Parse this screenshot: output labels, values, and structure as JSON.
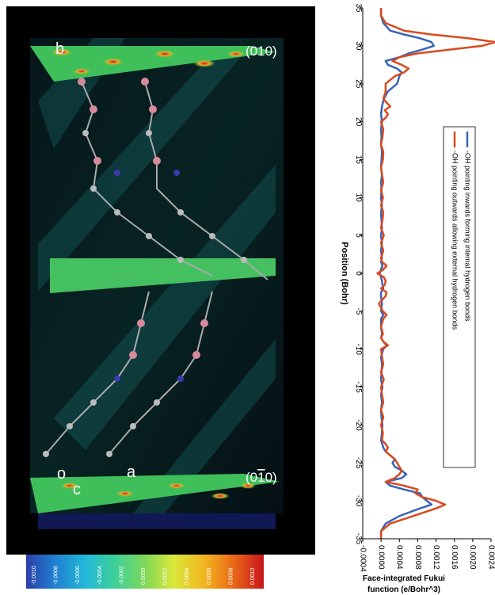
{
  "structure_panel": {
    "labels": {
      "b": "b",
      "o": "o",
      "c": "c",
      "a": "a"
    },
    "plane_top": "(010)",
    "plane_bottom_open": "(0",
    "plane_bottom_bar": "1",
    "plane_bottom_close": "0)"
  },
  "colorbar": {
    "ticks": [
      "-0.0010",
      "-0.0008",
      "-0.0006",
      "-0.0004",
      "-0.0002",
      "0.0000",
      "0.0002",
      "0.0004",
      "0.0006",
      "0.0008",
      "0.0010"
    ],
    "colors": [
      "#2a3fa8",
      "#1f7fd0",
      "#22b8d8",
      "#3ccf9a",
      "#7fd85a",
      "#d9e83a",
      "#f2b51e",
      "#ea6a18",
      "#c8141c"
    ]
  },
  "chart_data": {
    "type": "line",
    "title": "",
    "xlabel": "Position (Bohr)",
    "ylabel": "Face-integrated Fukui function (e/Bohr^3)",
    "xlim": [
      -35,
      35
    ],
    "ylim": [
      -0.0004,
      0.0024
    ],
    "x_ticks": [
      "-35",
      "-30",
      "-25",
      "-20",
      "-15",
      "-10",
      "-5",
      "0",
      "5",
      "10",
      "15",
      "20",
      "25",
      "30",
      "35"
    ],
    "y_ticks": [
      "-0.0004",
      "0.0000",
      "0.0004",
      "0.0008",
      "0.0012",
      "0.0016",
      "0.0020",
      "0.0024"
    ],
    "legend": {
      "placement": "center",
      "entries": [
        "-OH pointing inwards forming internal hydrogen bonds",
        "-OH pointing outwards allowing external hydrogen bonds"
      ]
    },
    "series": [
      {
        "name": "-OH pointing inwards forming internal hydrogen bonds",
        "color": "#3a63b8",
        "x": [
          -35,
          -34,
          -33,
          -32,
          -31,
          -30.5,
          -30,
          -29.5,
          -29,
          -28.5,
          -28,
          -27.5,
          -27,
          -26.5,
          -26,
          -25.5,
          -25,
          -24.5,
          -24,
          -23.5,
          -23,
          -22,
          -21,
          -20,
          -19,
          -18,
          -17,
          -16,
          -15,
          -14,
          -13,
          -12,
          -11,
          -10,
          -9.5,
          -9,
          -8.5,
          -8,
          -7,
          -6,
          -5.5,
          -5,
          -4,
          -3,
          -2.5,
          -2,
          -1.5,
          -1,
          -0.5,
          0,
          0.5,
          1,
          1.5,
          2,
          3,
          4,
          5,
          6,
          7,
          8,
          9,
          10,
          11,
          12,
          13,
          14,
          15,
          16,
          17,
          18,
          19,
          20,
          21,
          22,
          23,
          24,
          25,
          26,
          26.5,
          27,
          27.5,
          28,
          28.5,
          29,
          29.5,
          30,
          30.5,
          31,
          31.5,
          32,
          33,
          34,
          35
        ],
        "values": [
          0.0,
          0.0,
          0.0001,
          0.0004,
          0.00085,
          0.0011,
          0.001,
          0.0009,
          0.00085,
          0.0005,
          0.0002,
          0.0001,
          0.00045,
          0.00055,
          0.00045,
          0.0003,
          0.00025,
          0.0003,
          0.0002,
          0.0001,
          5e-05,
          0.0,
          2e-05,
          3e-05,
          1e-05,
          0.0,
          2e-05,
          0.0,
          3e-05,
          0.0,
          1e-05,
          2e-05,
          0.0,
          5e-05,
          0.00012,
          5e-05,
          0.0,
          2e-05,
          0.0,
          0.0,
          5e-05,
          0.0,
          2e-05,
          0.0,
          0.0,
          5e-05,
          3e-05,
          2e-05,
          0.0,
          -3e-05,
          0.0,
          3e-05,
          0.0,
          2e-05,
          0.0,
          2e-05,
          0.0,
          2e-05,
          1e-05,
          0.0,
          2e-05,
          0.0,
          1e-05,
          0.0,
          2e-05,
          0.0,
          1e-05,
          2e-05,
          0.0,
          1e-05,
          0.0,
          2e-05,
          0.0,
          2e-05,
          6e-05,
          0.00015,
          0.00035,
          0.0004,
          0.00045,
          0.00035,
          0.00015,
          0.0001,
          0.0004,
          0.0006,
          0.0009,
          0.00115,
          0.0011,
          0.00085,
          0.0005,
          0.0002,
          5e-05,
          0.0,
          0.0
        ]
      },
      {
        "name": "-OH pointing outwards allowing external hydrogen bonds",
        "color": "#d94a1e",
        "x": [
          -35,
          -34,
          -33,
          -32,
          -31,
          -30.5,
          -30,
          -29.5,
          -29,
          -28.5,
          -28,
          -27.5,
          -27,
          -26.5,
          -26,
          -25.5,
          -25,
          -24.5,
          -24,
          -23.5,
          -23,
          -22.5,
          -22,
          -21,
          -20,
          -19,
          -18,
          -17,
          -16,
          -15,
          -14,
          -13,
          -12,
          -11,
          -10,
          -9.5,
          -9,
          -8.5,
          -8,
          -7,
          -6,
          -5.5,
          -5,
          -4,
          -3,
          -2.5,
          -2,
          -1.5,
          -1,
          -0.5,
          0,
          0.5,
          1,
          1.5,
          2,
          3,
          4,
          5,
          6,
          7,
          8,
          9,
          10,
          11,
          12,
          13,
          14,
          15,
          16,
          17,
          18,
          19,
          20,
          20.5,
          21,
          21.5,
          22,
          23,
          24,
          25,
          26,
          26.5,
          27,
          27.5,
          28,
          28.5,
          29,
          29.5,
          30,
          30.5,
          31,
          31.5,
          32,
          33,
          34,
          35
        ],
        "values": [
          0.0,
          0.0,
          0.0002,
          0.0007,
          0.0012,
          0.0014,
          0.0012,
          0.0009,
          0.00075,
          0.0008,
          0.0005,
          0.0001,
          0.0003,
          0.0004,
          0.00045,
          0.0004,
          0.00035,
          0.0003,
          0.0002,
          0.0001,
          0.00015,
          0.0001,
          2e-05,
          4e-05,
          0.0,
          5e-05,
          0.0,
          5e-05,
          2e-05,
          0.0,
          6e-05,
          0.0,
          5e-05,
          2e-05,
          0.0,
          0.00015,
          5e-05,
          0.0,
          4e-05,
          0.0,
          5e-05,
          0.00012,
          4e-05,
          -5e-05,
          0.0001,
          0.00012,
          0.0,
          8e-05,
          0.0001,
          6e-05,
          -8e-05,
          5e-05,
          0.00012,
          2e-05,
          0.0,
          5e-05,
          0.0,
          6e-05,
          0.0,
          3e-05,
          5e-05,
          0.0,
          4e-05,
          0.0,
          5e-05,
          2e-05,
          0.0,
          4e-05,
          5e-05,
          0.0,
          3e-05,
          5e-05,
          0.0,
          0.0001,
          0.00015,
          8e-05,
          0.0002,
          5e-05,
          0.0001,
          0.0001,
          0.0003,
          0.0005,
          0.0006,
          0.00045,
          0.00025,
          0.0004,
          0.0008,
          0.0015,
          0.0022,
          0.0025,
          0.0019,
          0.0011,
          0.0005,
          0.0001,
          0.0,
          0.0
        ]
      }
    ]
  }
}
